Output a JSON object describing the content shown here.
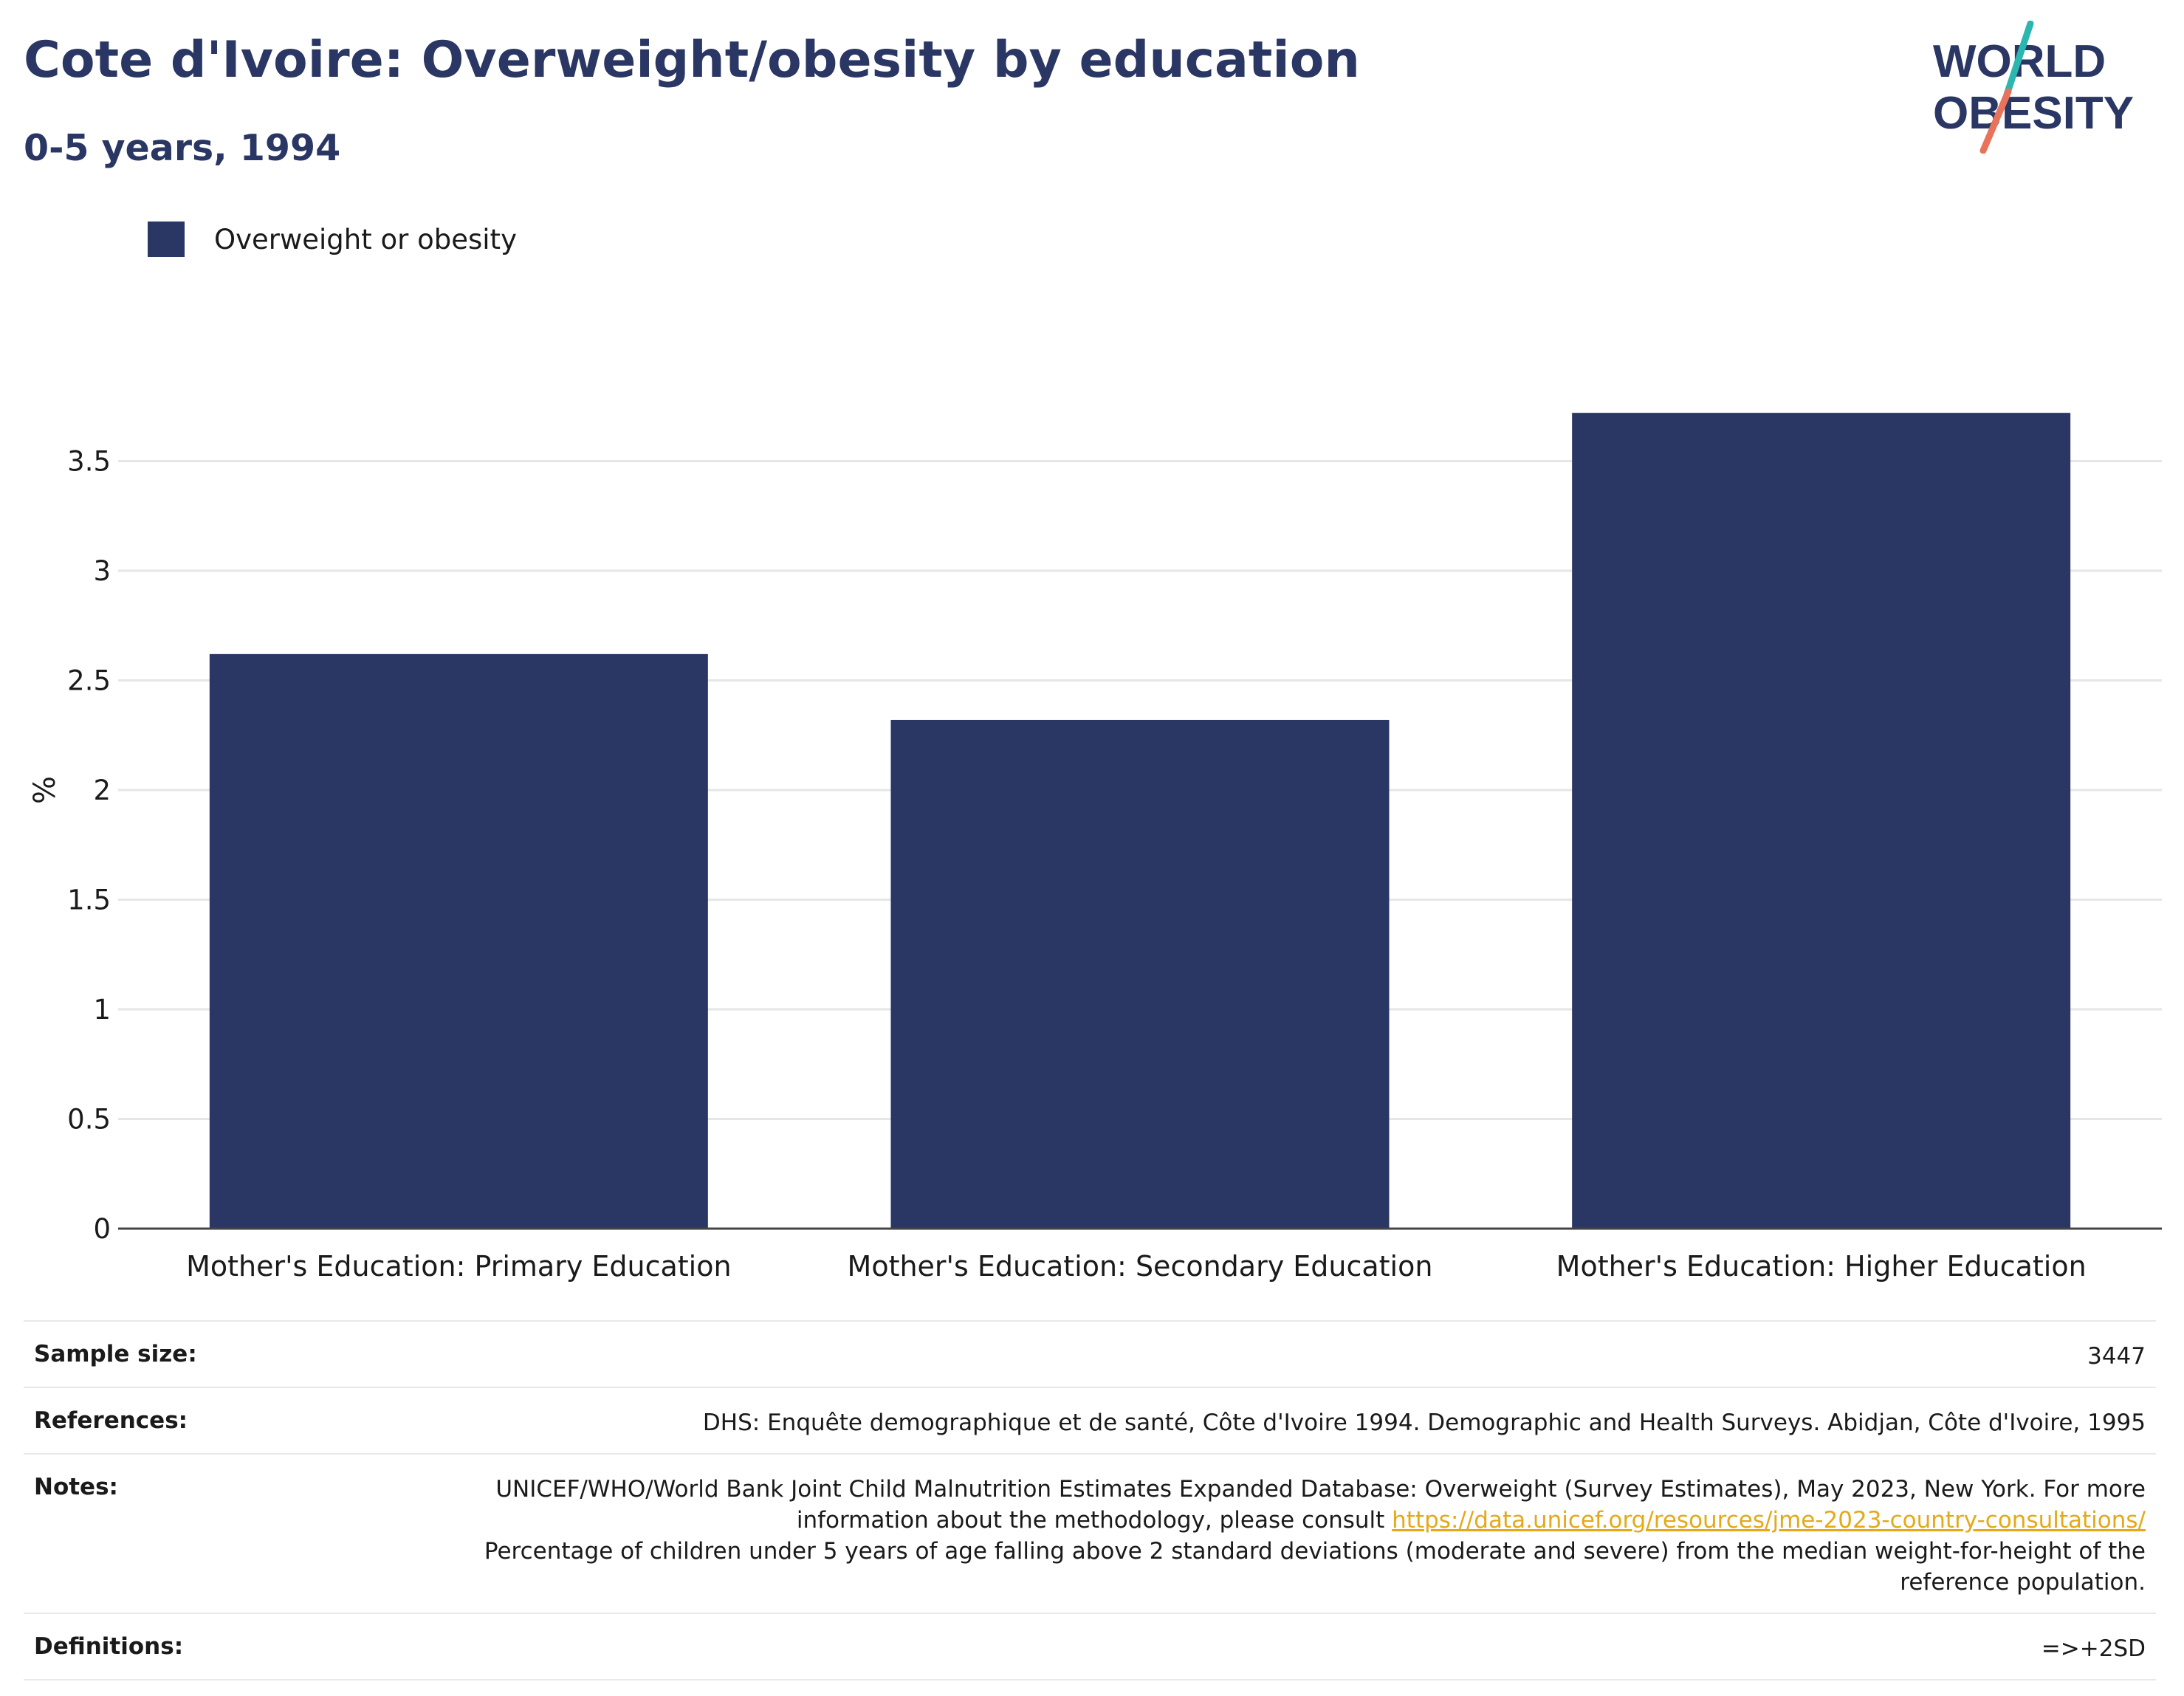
{
  "header": {
    "title": "Cote d'Ivoire: Overweight/obesity by education",
    "subtitle": "0-5 years, 1994"
  },
  "logo": {
    "line1": "WORLD",
    "line2": "OBESITY",
    "colors": {
      "text": "#2a3663",
      "slash_top": "#2bb6b0",
      "slash_bottom": "#e8735a"
    }
  },
  "colors": {
    "bar": "#2a3663",
    "grid": "#e6e6e6",
    "axis": "#444444"
  },
  "chart_data": {
    "type": "bar",
    "categories": [
      "Mother's Education: Primary Education",
      "Mother's Education: Secondary Education",
      "Mother's Education: Higher Education"
    ],
    "series": [
      {
        "name": "Overweight or obesity",
        "values": [
          2.62,
          2.32,
          3.72
        ]
      }
    ],
    "ylabel": "%",
    "xlabel": "",
    "ylim": [
      0,
      3.85
    ],
    "yticks": [
      0,
      0.5,
      1,
      1.5,
      2,
      2.5,
      3,
      3.5
    ],
    "ytick_labels": [
      "0",
      "0.5",
      "1",
      "1.5",
      "2",
      "2.5",
      "3",
      "3.5"
    ],
    "grid": true,
    "legend": "top-left"
  },
  "info": {
    "sample_size_label": "Sample size:",
    "sample_size": "3447",
    "references_label": "References:",
    "references": "DHS: Enquête demographique et de santé, Côte d'Ivoire 1994. Demographic and Health Surveys. Abidjan, Côte d'Ivoire, 1995",
    "notes_label": "Notes:",
    "notes_pre": "UNICEF/WHO/World Bank Joint Child Malnutrition Estimates Expanded Database: Overweight (Survey Estimates), May 2023, New York. For more information about the methodology, please consult ",
    "notes_link": "https://data.unicef.org/resources/jme-2023-country-consultations/",
    "notes_post": "Percentage of children under 5 years of age falling above 2 standard deviations (moderate and severe) from the median weight-for-height of the reference population.",
    "definitions_label": "Definitions:",
    "definitions": "=>+2SD"
  }
}
